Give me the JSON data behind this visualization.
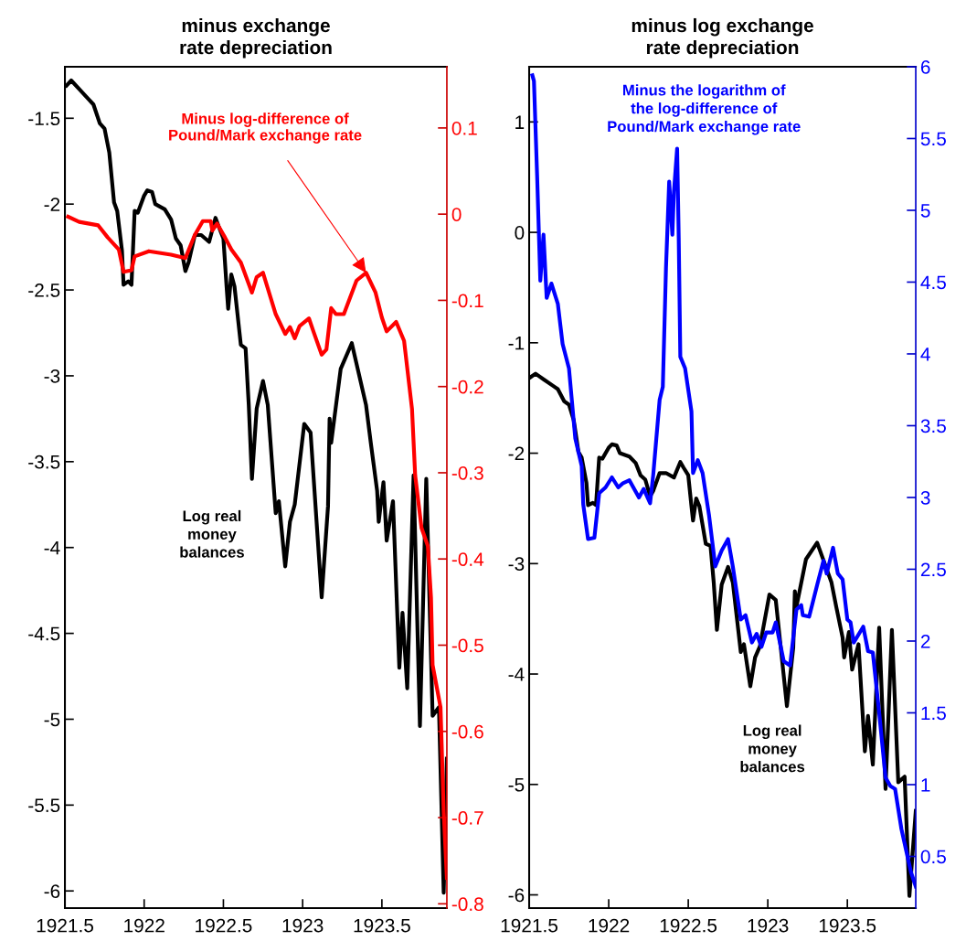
{
  "chart_data": [
    {
      "type": "line",
      "title": "minus exchange\nrate depreciation",
      "xlim": [
        1921.5,
        1923.91
      ],
      "xticks": [
        1921.5,
        1922,
        1922.5,
        1923,
        1923.5
      ],
      "ylim": [
        -6.1,
        -1.2
      ],
      "yticks": [
        -6,
        -5.5,
        -5,
        -4.5,
        -4,
        -3.5,
        -3,
        -2.5,
        -2,
        -1.5
      ],
      "y2lim": [
        -0.805,
        0.171
      ],
      "y2ticks": [
        -0.8,
        -0.7,
        -0.6,
        -0.5,
        -0.4,
        -0.3,
        -0.2,
        -0.1,
        0,
        0.1
      ],
      "grid": false,
      "legend": false,
      "series": [
        {
          "name": "Log real\nmoney\nbalances",
          "color": "#000000",
          "x": [
            1921.51,
            1921.54,
            1921.59,
            1921.65,
            1921.68,
            1921.72,
            1921.75,
            1921.78,
            1921.81,
            1921.83,
            1921.86,
            1921.87,
            1921.9,
            1921.92,
            1921.94,
            1921.96,
            1922.0,
            1922.02,
            1922.05,
            1922.07,
            1922.13,
            1922.17,
            1922.2,
            1922.23,
            1922.26,
            1922.28,
            1922.32,
            1922.36,
            1922.41,
            1922.45,
            1922.47,
            1922.5,
            1922.52,
            1922.53,
            1922.55,
            1922.57,
            1922.61,
            1922.64,
            1922.66,
            1922.68,
            1922.71,
            1922.75,
            1922.78,
            1922.83,
            1922.85,
            1922.89,
            1922.92,
            1922.95,
            1923.01,
            1923.05,
            1923.12,
            1923.16,
            1923.17,
            1923.18,
            1923.24,
            1923.31,
            1923.4,
            1923.43,
            1923.47,
            1923.48,
            1923.51,
            1923.53,
            1923.57,
            1923.61,
            1923.63,
            1923.66,
            1923.7,
            1923.74,
            1923.78,
            1923.82,
            1923.86,
            1923.89,
            1923.91
          ],
          "values": [
            -1.31,
            -1.28,
            -1.33,
            -1.39,
            -1.42,
            -1.53,
            -1.56,
            -1.7,
            -1.99,
            -2.04,
            -2.27,
            -2.47,
            -2.45,
            -2.47,
            -2.04,
            -2.05,
            -1.95,
            -1.92,
            -1.93,
            -2.0,
            -2.03,
            -2.09,
            -2.2,
            -2.24,
            -2.39,
            -2.34,
            -2.18,
            -2.18,
            -2.22,
            -2.08,
            -2.13,
            -2.2,
            -2.48,
            -2.61,
            -2.41,
            -2.48,
            -2.82,
            -2.84,
            -3.17,
            -3.6,
            -3.19,
            -3.03,
            -3.17,
            -3.8,
            -3.73,
            -4.11,
            -3.85,
            -3.75,
            -3.28,
            -3.33,
            -4.29,
            -3.76,
            -3.25,
            -3.39,
            -2.96,
            -2.81,
            -3.17,
            -3.39,
            -3.67,
            -3.85,
            -3.62,
            -3.96,
            -3.73,
            -4.7,
            -4.38,
            -4.82,
            -3.58,
            -5.04,
            -3.6,
            -4.98,
            -4.93,
            -6.01,
            -5.23
          ]
        },
        {
          "name": "Minus log-difference of\nPound/Mark exchange rate",
          "color": "#ff0000",
          "axis": "y2",
          "x": [
            1921.52,
            1921.59,
            1921.71,
            1921.77,
            1921.84,
            1921.87,
            1921.92,
            1921.94,
            1922.03,
            1922.17,
            1922.26,
            1922.32,
            1922.37,
            1922.42,
            1922.43,
            1922.46,
            1922.51,
            1922.55,
            1922.61,
            1922.68,
            1922.71,
            1922.75,
            1922.83,
            1922.89,
            1922.92,
            1922.95,
            1922.98,
            1923.04,
            1923.07,
            1923.12,
            1923.15,
            1923.18,
            1923.21,
            1923.26,
            1923.34,
            1923.4,
            1923.46,
            1923.5,
            1923.53,
            1923.59,
            1923.64,
            1923.69,
            1923.71,
            1923.75,
            1923.79,
            1923.81,
            1923.82,
            1923.87,
            1923.89,
            1923.91
          ],
          "values": [
            -0.003,
            -0.009,
            -0.013,
            -0.027,
            -0.041,
            -0.067,
            -0.065,
            -0.049,
            -0.043,
            -0.047,
            -0.051,
            -0.024,
            -0.008,
            -0.008,
            -0.019,
            -0.011,
            -0.027,
            -0.041,
            -0.056,
            -0.091,
            -0.073,
            -0.068,
            -0.116,
            -0.139,
            -0.131,
            -0.144,
            -0.13,
            -0.121,
            -0.137,
            -0.163,
            -0.157,
            -0.109,
            -0.116,
            -0.116,
            -0.077,
            -0.068,
            -0.091,
            -0.12,
            -0.136,
            -0.125,
            -0.147,
            -0.226,
            -0.303,
            -0.364,
            -0.385,
            -0.445,
            -0.523,
            -0.572,
            -0.693,
            -0.77
          ]
        }
      ]
    },
    {
      "type": "line",
      "title": "minus log exchange\nrate depreciation",
      "xlim": [
        1921.5,
        1923.93
      ],
      "xticks": [
        1921.5,
        1922,
        1922.5,
        1923,
        1923.5
      ],
      "ylim": [
        -6.12,
        1.5
      ],
      "yticks": [
        -6,
        -5,
        -4,
        -3,
        -2,
        -1,
        0,
        1
      ],
      "y2lim": [
        0.14,
        6
      ],
      "y2ticks": [
        0.5,
        1,
        1.5,
        2,
        2.5,
        3,
        3.5,
        4,
        4.5,
        5,
        5.5,
        6
      ],
      "grid": false,
      "legend": false,
      "series": [
        {
          "name": "Log real\nmoney\nbalances",
          "color": "#000000",
          "x": [
            1921.51,
            1921.54,
            1921.59,
            1921.65,
            1921.68,
            1921.72,
            1921.75,
            1921.78,
            1921.81,
            1921.83,
            1921.86,
            1921.87,
            1921.9,
            1921.92,
            1921.94,
            1921.96,
            1922.0,
            1922.02,
            1922.05,
            1922.07,
            1922.13,
            1922.17,
            1922.2,
            1922.23,
            1922.26,
            1922.28,
            1922.32,
            1922.36,
            1922.41,
            1922.45,
            1922.47,
            1922.5,
            1922.52,
            1922.53,
            1922.55,
            1922.57,
            1922.61,
            1922.64,
            1922.66,
            1922.68,
            1922.71,
            1922.75,
            1922.78,
            1922.83,
            1922.85,
            1922.89,
            1922.92,
            1922.95,
            1923.01,
            1923.05,
            1923.12,
            1923.16,
            1923.17,
            1923.18,
            1923.24,
            1923.31,
            1923.4,
            1923.43,
            1923.47,
            1923.48,
            1923.51,
            1923.53,
            1923.57,
            1923.61,
            1923.63,
            1923.66,
            1923.7,
            1923.74,
            1923.78,
            1923.82,
            1923.86,
            1923.89,
            1923.93
          ],
          "values": [
            -1.31,
            -1.28,
            -1.33,
            -1.39,
            -1.42,
            -1.53,
            -1.56,
            -1.7,
            -1.99,
            -2.04,
            -2.27,
            -2.47,
            -2.45,
            -2.47,
            -2.04,
            -2.05,
            -1.95,
            -1.92,
            -1.93,
            -2.0,
            -2.03,
            -2.09,
            -2.2,
            -2.24,
            -2.39,
            -2.34,
            -2.18,
            -2.18,
            -2.22,
            -2.08,
            -2.13,
            -2.2,
            -2.48,
            -2.61,
            -2.41,
            -2.48,
            -2.82,
            -2.84,
            -3.17,
            -3.6,
            -3.19,
            -3.03,
            -3.17,
            -3.8,
            -3.73,
            -4.11,
            -3.85,
            -3.75,
            -3.28,
            -3.33,
            -4.29,
            -3.76,
            -3.25,
            -3.39,
            -2.96,
            -2.81,
            -3.17,
            -3.39,
            -3.67,
            -3.85,
            -3.62,
            -3.96,
            -3.73,
            -4.7,
            -4.38,
            -4.82,
            -3.58,
            -5.04,
            -3.6,
            -4.98,
            -4.93,
            -6.01,
            -5.24
          ]
        },
        {
          "name": "Minus the logarithm of\nthe log-difference of\nPound/Mark exchange rate",
          "color": "#0000ff",
          "axis": "y2",
          "x": [
            1921.52,
            1921.53,
            1921.55,
            1921.57,
            1921.59,
            1921.61,
            1921.64,
            1921.68,
            1921.71,
            1921.75,
            1921.79,
            1921.83,
            1921.84,
            1921.87,
            1921.91,
            1921.94,
            1921.98,
            1922.02,
            1922.06,
            1922.09,
            1922.13,
            1922.19,
            1922.22,
            1922.26,
            1922.28,
            1922.32,
            1922.34,
            1922.36,
            1922.38,
            1922.4,
            1922.41,
            1922.43,
            1922.44,
            1922.45,
            1922.48,
            1922.52,
            1922.53,
            1922.56,
            1922.59,
            1922.63,
            1922.67,
            1922.71,
            1922.75,
            1922.78,
            1922.83,
            1922.86,
            1922.9,
            1922.93,
            1922.96,
            1922.99,
            1923.03,
            1923.05,
            1923.1,
            1923.14,
            1923.18,
            1923.21,
            1923.22,
            1923.26,
            1923.31,
            1923.35,
            1923.37,
            1923.41,
            1923.44,
            1923.47,
            1923.5,
            1923.52,
            1923.54,
            1923.6,
            1923.63,
            1923.66,
            1923.7,
            1923.74,
            1923.77,
            1923.8,
            1923.84,
            1923.87,
            1923.9,
            1923.93
          ],
          "values": [
            5.94,
            5.9,
            5.24,
            4.51,
            4.83,
            4.39,
            4.49,
            4.35,
            4.07,
            3.9,
            3.41,
            3.22,
            2.95,
            2.71,
            2.72,
            3.03,
            3.07,
            3.14,
            3.07,
            3.1,
            3.12,
            3.0,
            3.06,
            2.96,
            3.16,
            3.68,
            3.77,
            4.6,
            5.2,
            4.83,
            5.13,
            5.43,
            4.81,
            3.98,
            3.9,
            3.6,
            3.17,
            3.26,
            3.17,
            2.88,
            2.52,
            2.63,
            2.71,
            2.52,
            2.15,
            2.18,
            1.99,
            2.05,
            1.96,
            2.06,
            2.06,
            2.13,
            1.86,
            1.83,
            2.22,
            2.25,
            2.18,
            2.17,
            2.39,
            2.56,
            2.47,
            2.65,
            2.47,
            2.43,
            2.15,
            2.13,
            1.99,
            2.1,
            1.93,
            1.92,
            1.5,
            1.05,
            0.99,
            0.97,
            0.69,
            0.54,
            0.39,
            0.29
          ]
        }
      ]
    }
  ]
}
